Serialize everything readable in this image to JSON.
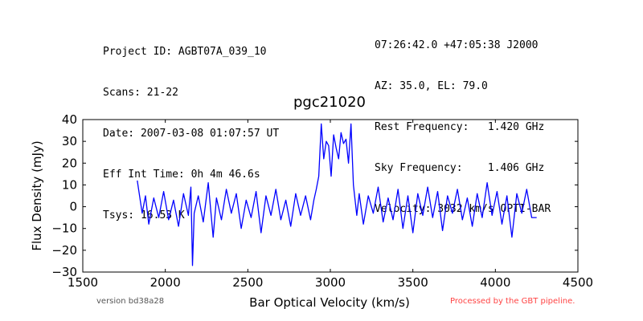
{
  "header": {
    "project_id": "Project ID: AGBT07A_039_10",
    "scans": "Scans: 21-22",
    "date": "Date: 2007-03-08 01:07:57 UT",
    "eff_int_time": "Eff Int Time: 0h 4m 46.6s",
    "tsys": "Tsys: 16.53 K",
    "coords": "07:26:42.0 +47:05:38 J2000",
    "az_el": "AZ: 35.0, EL: 79.0",
    "rest_freq": "Rest Frequency:   1.420 GHz",
    "sky_freq": "Sky Frequency:    1.406 GHz",
    "velocity": "Velocity: 3032 km/s OPTI-BAR"
  },
  "footer": {
    "version": "version bd38a28",
    "pipeline": "Processed by the GBT pipeline."
  },
  "chart_data": {
    "type": "line",
    "title": "pgc21020",
    "xlabel": "Bar Optical Velocity (km/s)",
    "ylabel": "Flux Density (mJy)",
    "xlim": [
      1500,
      4500
    ],
    "ylim": [
      -30,
      40
    ],
    "xticks": [
      1500,
      2000,
      2500,
      3000,
      3500,
      4000,
      4500
    ],
    "yticks": [
      -30,
      -20,
      -10,
      0,
      10,
      20,
      30,
      40
    ],
    "grid": false,
    "line_color": "#0000ff",
    "series": [
      {
        "x": [
          1830,
          1860,
          1880,
          1900,
          1930,
          1960,
          1990,
          2020,
          2050,
          2080,
          2110,
          2140,
          2155,
          2165,
          2175,
          2200,
          2230,
          2260,
          2290,
          2310,
          2340,
          2370,
          2400,
          2430,
          2460,
          2490,
          2520,
          2550,
          2580,
          2610,
          2640,
          2670,
          2700,
          2730,
          2760,
          2790,
          2820,
          2850,
          2880,
          2900,
          2915,
          2930,
          2945,
          2960,
          2975,
          2990,
          3005,
          3020,
          3035,
          3050,
          3065,
          3080,
          3095,
          3110,
          3125,
          3140,
          3150,
          3160,
          3175,
          3200,
          3230,
          3260,
          3290,
          3320,
          3350,
          3380,
          3410,
          3440,
          3470,
          3500,
          3530,
          3560,
          3590,
          3620,
          3650,
          3680,
          3710,
          3740,
          3770,
          3800,
          3830,
          3860,
          3890,
          3920,
          3950,
          3980,
          4010,
          4040,
          4070,
          4100,
          4130,
          4160,
          4190,
          4220,
          4250
        ],
        "y": [
          12,
          -3,
          5,
          -8,
          4,
          -5,
          7,
          -6,
          3,
          -9,
          6,
          -4,
          9,
          -27,
          -3,
          5,
          -7,
          11,
          -14,
          4,
          -6,
          8,
          -3,
          6,
          -10,
          3,
          -5,
          7,
          -12,
          5,
          -4,
          8,
          -6,
          3,
          -9,
          6,
          -4,
          5,
          -6,
          3,
          8,
          14,
          38,
          22,
          30,
          28,
          14,
          33,
          27,
          22,
          34,
          29,
          31,
          20,
          38,
          10,
          3,
          -4,
          6,
          -8,
          5,
          -3,
          9,
          -7,
          4,
          -6,
          8,
          -10,
          5,
          -12,
          6,
          -4,
          9,
          -5,
          7,
          -11,
          5,
          -3,
          8,
          -6,
          4,
          -9,
          6,
          -5,
          11,
          -4,
          7,
          -8,
          5,
          -14,
          6,
          -3,
          8,
          -5,
          -5
        ]
      }
    ]
  }
}
